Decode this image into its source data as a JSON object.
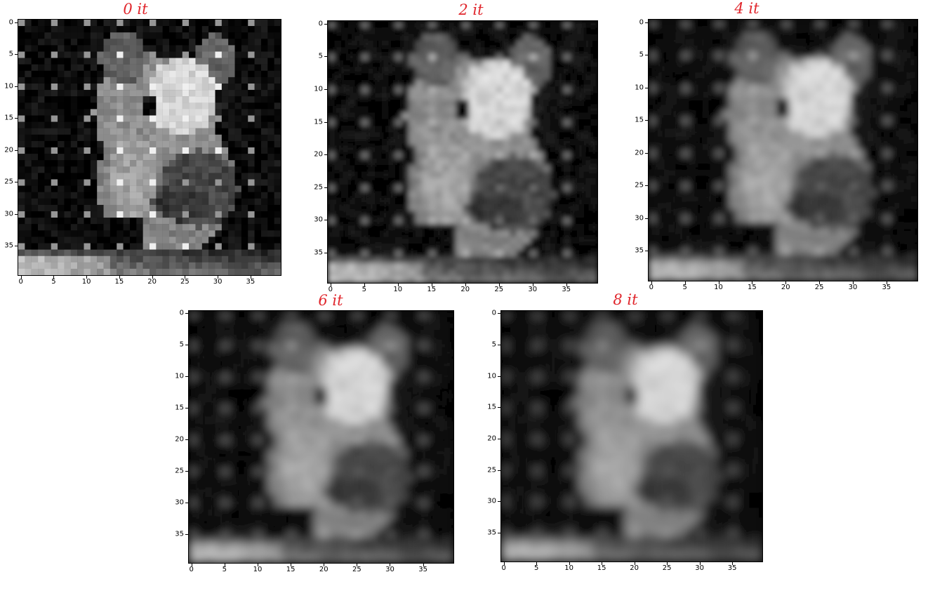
{
  "panels": [
    {
      "title": "0 it",
      "blur": 0
    },
    {
      "title": "2 it",
      "blur": 0.9
    },
    {
      "title": "4 it",
      "blur": 1.3
    },
    {
      "title": "6 it",
      "blur": 1.6
    },
    {
      "title": "8 it",
      "blur": 1.85
    }
  ],
  "axes": {
    "grid_size": 40,
    "y_ticks": [
      "0",
      "5",
      "10",
      "15",
      "20",
      "25",
      "30",
      "35"
    ],
    "x_ticks": [
      "0",
      "5",
      "10",
      "15",
      "20",
      "25",
      "30",
      "35"
    ]
  },
  "colors": {
    "title": "#e0262c",
    "background": "#000000"
  }
}
